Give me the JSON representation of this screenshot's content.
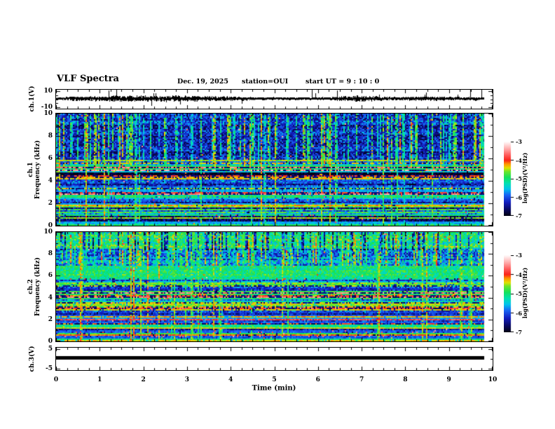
{
  "title": "VLF Spectra",
  "header": {
    "date": "Dec. 19, 2025",
    "station": "station=OUI",
    "start_ut": "start UT =  9 : 10 : 0"
  },
  "xaxis": {
    "label": "Time (min)",
    "xlim": [
      0,
      10
    ],
    "minor_tick_step": 0.25,
    "data_end_min": 9.8,
    "ticks": [
      {
        "v": 0,
        "t": "0"
      },
      {
        "v": 1,
        "t": "1"
      },
      {
        "v": 2,
        "t": "2"
      },
      {
        "v": 3,
        "t": "3"
      },
      {
        "v": 4,
        "t": "4"
      },
      {
        "v": 5,
        "t": "5"
      },
      {
        "v": 6,
        "t": "6"
      },
      {
        "v": 7,
        "t": "7"
      },
      {
        "v": 8,
        "t": "8"
      },
      {
        "v": 9,
        "t": "9"
      },
      {
        "v": 10,
        "t": "10"
      }
    ]
  },
  "colorbar": {
    "label": "log(PSD)(V²/Hz)",
    "range": [
      -3,
      -7
    ],
    "ticks": [
      {
        "v": -3,
        "t": "-3"
      },
      {
        "v": -4,
        "t": "-4"
      },
      {
        "v": -5,
        "t": "-5"
      },
      {
        "v": -6,
        "t": "-6"
      },
      {
        "v": -7,
        "t": "-7"
      }
    ]
  },
  "chart_data": [
    {
      "id": "ch1wave",
      "type": "line",
      "name": "ch.1 time-series voltage",
      "ylabel": "ch.1(V)",
      "ylim": [
        -11.5,
        11.5
      ],
      "yticks": [
        {
          "v": 10,
          "t": "10"
        },
        {
          "v": -10,
          "t": "-10"
        }
      ],
      "summary": "dense black noise band around 0 V with sporadic impulsive spikes reaching about ±10 V",
      "signal": {
        "kind": "noise",
        "mean_v": 0,
        "seed": 7,
        "spike_prob": 0.013
      }
    },
    {
      "id": "ch1spec",
      "type": "heatmap",
      "name": "ch.1 VLF spectrogram",
      "ylabel1": "ch.1",
      "ylabel2": "Frequency (kHz)",
      "ylim": [
        0,
        10
      ],
      "yticks": [
        {
          "v": 0,
          "t": "0"
        },
        {
          "v": 2,
          "t": "2"
        },
        {
          "v": 4,
          "t": "4"
        },
        {
          "v": 6,
          "t": "6"
        },
        {
          "v": 8,
          "t": "8"
        },
        {
          "v": 10,
          "t": "10"
        }
      ],
      "ytick_minor": [
        1,
        3,
        5,
        7,
        9
      ],
      "summary": "dark blue background; dense green/cyan vertical sferic streaks above ~5.3 kHz; very dark band 4.6-5.3 kHz; many coloured horizontal interference lines below 5.5 kHz including dark-red lines near 2.3-3.1 kHz and a bright green line near 1.8 kHz",
      "texture": {
        "seed": 41,
        "bands": [
          {
            "f0": 5.35,
            "f1": 10.01,
            "base": -6.25,
            "cell_noise": 0.55,
            "row_noise": 0.25
          },
          {
            "f0": 4.55,
            "f1": 5.35,
            "base": -6.75,
            "cell_noise": 0.3,
            "row_noise": 0.2
          },
          {
            "f0": -0.01,
            "f1": 4.55,
            "base": -6.3,
            "cell_noise": 0.5,
            "row_noise": 0.4
          }
        ],
        "hbands": [
          {
            "f0": 1.7,
            "f1": 1.95,
            "base": -5.0,
            "cell_noise": 0.35
          },
          {
            "f0": 0.08,
            "f1": 0.35,
            "base": -5.5,
            "cell_noise": 0.4
          },
          {
            "f0": 2.3,
            "f1": 3.1,
            "base": -6.0,
            "cell_noise": 0.6
          }
        ],
        "hstripes": {
          "count": 58,
          "f0": 0.05,
          "f1": 5.9,
          "vmin": -6.1,
          "vmax": -3.4
        },
        "vstreaks": {
          "f0": 5.35,
          "f1": 10,
          "density": 0.42,
          "vmin": -5.6,
          "vmax": -4.3,
          "full_prob": 0.22
        },
        "speckle": {
          "prob": 0.004,
          "vmin": -4.3,
          "vmax": -3.3
        }
      }
    },
    {
      "id": "ch2spec",
      "type": "heatmap",
      "name": "ch.2 VLF spectrogram",
      "ylabel1": "ch.2",
      "ylabel2": "Frequency (kHz)",
      "ylim": [
        0,
        10
      ],
      "yticks": [
        {
          "v": 0,
          "t": "0"
        },
        {
          "v": 2,
          "t": "2"
        },
        {
          "v": 4,
          "t": "4"
        },
        {
          "v": 6,
          "t": "6"
        },
        {
          "v": 8,
          "t": "8"
        },
        {
          "v": 10,
          "t": "10"
        }
      ],
      "ytick_minor": [
        1,
        3,
        5,
        7,
        9
      ],
      "summary": "bright green band 8.4-10 kHz with dark vertical gaps; green/cyan band 5.8-7 kHz; bright green band 3.1-3.7 kHz; darker blue bottom below 1.6 kHz; many coloured horizontal interference lines and vertical sferic streaks",
      "texture": {
        "seed": 87,
        "bands": [
          {
            "f0": 8.4,
            "f1": 10.01,
            "base": -5.0,
            "cell_noise": 0.55,
            "row_noise": 0.2
          },
          {
            "f0": 6.95,
            "f1": 8.4,
            "base": -5.75,
            "cell_noise": 0.6,
            "row_noise": 0.25
          },
          {
            "f0": 5.75,
            "f1": 6.95,
            "base": -5.1,
            "cell_noise": 0.4,
            "row_noise": 0.2
          },
          {
            "f0": 3.75,
            "f1": 5.75,
            "base": -6.15,
            "cell_noise": 0.5,
            "row_noise": 0.35
          },
          {
            "f0": 3.05,
            "f1": 3.75,
            "base": -5.2,
            "cell_noise": 0.4,
            "row_noise": 0.2
          },
          {
            "f0": 1.55,
            "f1": 3.05,
            "base": -6.15,
            "cell_noise": 0.5,
            "row_noise": 0.35
          },
          {
            "f0": -0.01,
            "f1": 1.55,
            "base": -6.5,
            "cell_noise": 0.45,
            "row_noise": 0.3
          }
        ],
        "hbands": [
          {
            "f0": 0.05,
            "f1": 0.3,
            "base": -5.3,
            "cell_noise": 0.35
          },
          {
            "f0": 1.28,
            "f1": 1.42,
            "base": -4.6,
            "cell_noise": 0.2
          }
        ],
        "hstripes": {
          "count": 62,
          "f0": 0.05,
          "f1": 5.8,
          "vmin": -6.2,
          "vmax": -3.5
        },
        "vstreaks": {
          "f0": 6.95,
          "f1": 10,
          "density": 0.45,
          "vmin": -5.3,
          "vmax": -4.2,
          "full_prob": 0.18
        },
        "vdark": {
          "f0": 8.4,
          "f1": 10,
          "density": 0.25,
          "delta": -1.3
        },
        "speckle": {
          "prob": 0.004,
          "vmin": -4.3,
          "vmax": -3.3
        }
      }
    },
    {
      "id": "ch3wave",
      "type": "line",
      "name": "ch.3 time-series voltage",
      "ylabel": "ch.3(V)",
      "ylim": [
        -5.8,
        5.8
      ],
      "yticks": [
        {
          "v": 5,
          "t": "5"
        },
        {
          "v": -5,
          "t": "-5"
        }
      ],
      "summary": "flat thick black trace at ~0 V for the whole record",
      "signal": {
        "kind": "flat",
        "mean_v": 0,
        "thickness_px": 5
      }
    }
  ]
}
